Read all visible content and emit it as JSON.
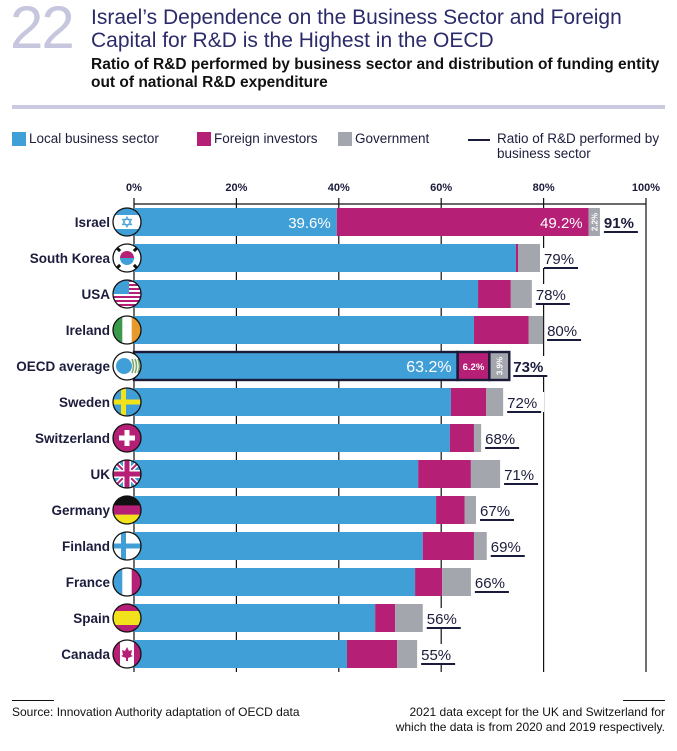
{
  "header": {
    "figure_number": "22",
    "title": "Israel’s Dependence on the Business Sector and Foreign Capital for R&D is the Highest in the OECD",
    "subtitle": "Ratio of R&D performed by business sector and distribution of funding entity out of national R&D expenditure"
  },
  "colors": {
    "local": "#419fd8",
    "foreign": "#b51f75",
    "government": "#a3a6ad",
    "navy": "#1a1a3a"
  },
  "legend": [
    {
      "label": "Local business sector",
      "kind": "swatch",
      "color": "#419fd8"
    },
    {
      "label": "Foreign investors",
      "kind": "swatch",
      "color": "#b51f75"
    },
    {
      "label": "Government",
      "kind": "swatch",
      "color": "#a3a6ad"
    },
    {
      "label": "Ratio of R&D performed by business sector",
      "kind": "line",
      "color": "#1a1a3a"
    }
  ],
  "chart_data": {
    "type": "bar",
    "orientation": "horizontal",
    "stacked": true,
    "title": "Israel’s Dependence on the Business Sector and Foreign Capital for R&D is the Highest in the OECD",
    "xlabel": "",
    "ylabel": "",
    "xlim": [
      0,
      100
    ],
    "xticks": [
      "0%",
      "20%",
      "40%",
      "60%",
      "80%",
      "100%"
    ],
    "grid": true,
    "legend_position": "top",
    "categories": [
      "Israel",
      "South Korea",
      "USA",
      "Ireland",
      "OECD average",
      "Sweden",
      "Switzerland",
      "UK",
      "Germany",
      "Finland",
      "France",
      "Spain",
      "Canada"
    ],
    "flags": [
      "israel-flag",
      "south-korea-flag",
      "usa-flag",
      "ireland-flag",
      "oecd-logo",
      "sweden-flag",
      "switzerland-flag",
      "uk-flag",
      "germany-flag",
      "finland-flag",
      "france-flag",
      "spain-flag",
      "canada-flag"
    ],
    "series": [
      {
        "name": "Local business sector",
        "values": [
          39.6,
          74.6,
          67.2,
          66.4,
          63.2,
          61.9,
          61.7,
          55.5,
          59.0,
          56.4,
          54.9,
          47.1,
          41.6
        ]
      },
      {
        "name": "Foreign investors",
        "values": [
          49.2,
          0.4,
          6.4,
          10.7,
          6.2,
          6.9,
          4.7,
          10.3,
          5.6,
          10.0,
          5.3,
          3.9,
          9.8
        ]
      },
      {
        "name": "Government",
        "values": [
          2.2,
          4.3,
          4.1,
          2.8,
          3.9,
          3.3,
          1.4,
          5.7,
          2.2,
          2.5,
          5.6,
          5.4,
          3.9
        ]
      }
    ],
    "totals": [
      "91%",
      "79%",
      "78%",
      "80%",
      "73%",
      "72%",
      "68%",
      "71%",
      "67%",
      "69%",
      "66%",
      "56%",
      "55%"
    ],
    "segment_labels": {
      "Israel": [
        "39.6%",
        "49.2%",
        "2.2%"
      ],
      "OECD average": [
        "63.2%",
        "6.2%",
        "3.9%"
      ]
    },
    "highlight_rows": [
      "Israel",
      "OECD average"
    ]
  },
  "footer": {
    "source": "Source: Innovation Authority adaptation of OECD data",
    "note_line1": "2021 data except for the UK and Switzerland for",
    "note_line2": "which the data is from 2020 and 2019 respectively."
  }
}
